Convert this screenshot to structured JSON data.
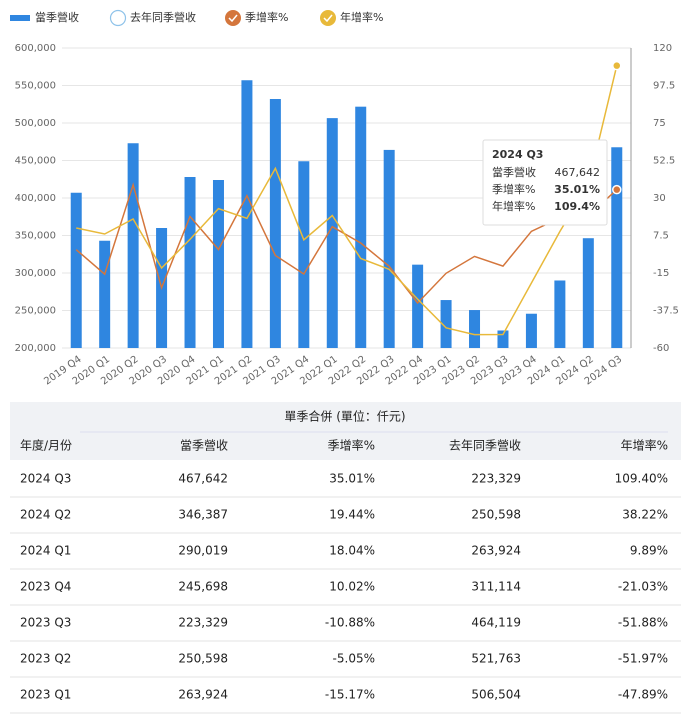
{
  "chart_data": {
    "type": "bar-line",
    "categories": [
      "2019 Q4",
      "2020 Q1",
      "2020 Q2",
      "2020 Q3",
      "2020 Q4",
      "2021 Q1",
      "2021 Q2",
      "2021 Q3",
      "2021 Q4",
      "2022 Q1",
      "2022 Q2",
      "2022 Q3",
      "2022 Q4",
      "2023 Q1",
      "2023 Q2",
      "2023 Q3",
      "2023 Q4",
      "2024 Q1",
      "2024 Q2",
      "2024 Q3"
    ],
    "series": [
      {
        "name": "當季營收",
        "color": "#2f86e0",
        "type": "bar",
        "values": [
          407000,
          343000,
          473000,
          360000,
          428000,
          424000,
          557000,
          532000,
          449000,
          506504,
          521763,
          464119,
          311114,
          263924,
          250598,
          223329,
          245698,
          290019,
          346387,
          467642
        ]
      },
      {
        "name": "去年同季營收",
        "color": "#8fc3ea",
        "hidden": true
      },
      {
        "name": "季增率%",
        "color": "#d4763c",
        "type": "line",
        "axis": "y2",
        "values": [
          -1,
          -15.7,
          37.9,
          -23.9,
          18.9,
          -0.9,
          31.4,
          -4.5,
          -15.6,
          12.8,
          3.0,
          -11.0,
          -33.0,
          -15.17,
          -5.05,
          -10.88,
          10.02,
          18.04,
          19.44,
          35.01
        ]
      },
      {
        "name": "年增率%",
        "color": "#e8b93a",
        "type": "line",
        "axis": "y2",
        "values": [
          12,
          8.4,
          17.4,
          -12,
          5.2,
          23.6,
          17.8,
          47.8,
          4.9,
          19.5,
          -6.3,
          -12.8,
          -30.7,
          -47.89,
          -51.97,
          -51.88,
          -21.03,
          9.89,
          38.22,
          109.4
        ]
      }
    ],
    "ylim": [
      200000,
      600000
    ],
    "yticks": [
      {
        "value": 200000,
        "label": "200,000"
      },
      {
        "value": 250000,
        "label": "250,000"
      },
      {
        "value": 300000,
        "label": "300,000"
      },
      {
        "value": 350000,
        "label": "350,000"
      },
      {
        "value": 400000,
        "label": "400,000"
      },
      {
        "value": 450000,
        "label": "450,000"
      },
      {
        "value": 500000,
        "label": "500,000"
      },
      {
        "value": 550000,
        "label": "550,000"
      },
      {
        "value": 600000,
        "label": "600,000"
      }
    ],
    "y2lim": [
      -60,
      120
    ],
    "y2ticks": [
      -60,
      -37.5,
      -15,
      7.5,
      30,
      52.5,
      75,
      97.5,
      120
    ],
    "grid": true,
    "tooltip": {
      "title": "2024 Q3",
      "rows": [
        [
          "當季營收",
          "467,642"
        ],
        [
          "季增率%",
          "35.01%"
        ],
        [
          "年增率%",
          "109.4%"
        ]
      ]
    }
  },
  "table": {
    "title": "單季合併 (單位：仟元)",
    "headers": [
      "年度/月份",
      "當季營收",
      "季增率%",
      "去年同季營收",
      "年增率%"
    ],
    "rows": [
      [
        "2024 Q3",
        "467,642",
        "35.01%",
        "223,329",
        "109.40%"
      ],
      [
        "2024 Q2",
        "346,387",
        "19.44%",
        "250,598",
        "38.22%"
      ],
      [
        "2024 Q1",
        "290,019",
        "18.04%",
        "263,924",
        "9.89%"
      ],
      [
        "2023 Q4",
        "245,698",
        "10.02%",
        "311,114",
        "-21.03%"
      ],
      [
        "2023 Q3",
        "223,329",
        "-10.88%",
        "464,119",
        "-51.88%"
      ],
      [
        "2023 Q2",
        "250,598",
        "-5.05%",
        "521,763",
        "-51.97%"
      ],
      [
        "2023 Q1",
        "263,924",
        "-15.17%",
        "506,504",
        "-47.89%"
      ]
    ]
  }
}
